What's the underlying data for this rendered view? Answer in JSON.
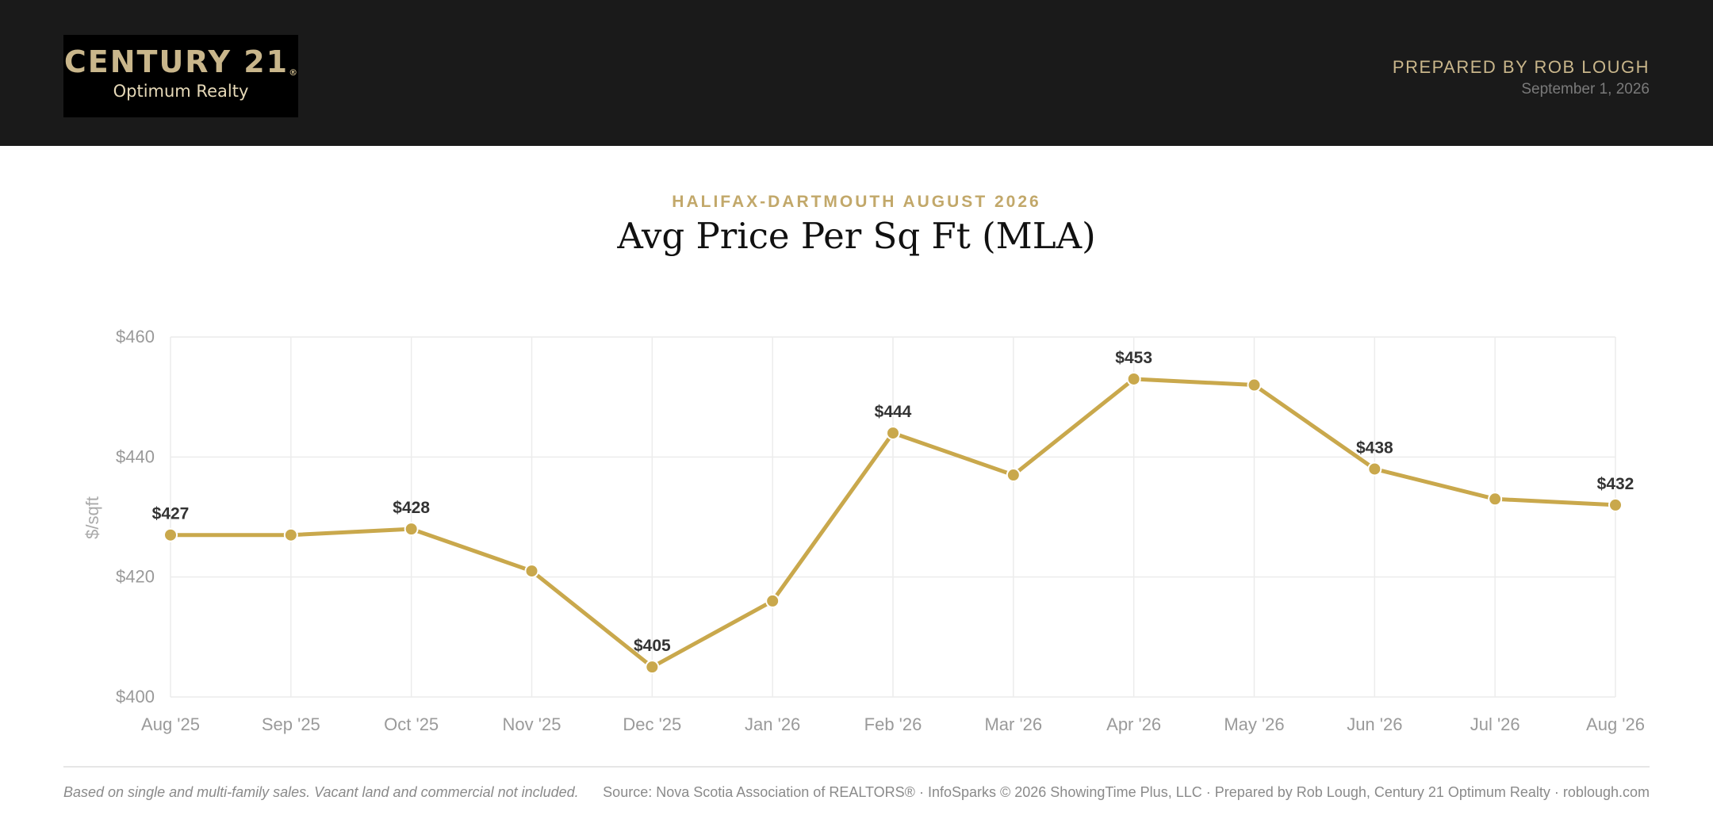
{
  "header": {
    "logo_brand": "CENTURY 21",
    "logo_registered": "®",
    "logo_sub": "Optimum Realty",
    "prepared_by": "PREPARED BY ROB LOUGH",
    "date": "September 1, 2026"
  },
  "eyebrow": "HALIFAX-DARTMOUTH AUGUST 2026",
  "title": "Avg Price Per Sq Ft (MLA)",
  "chart_data": {
    "type": "line",
    "title": "Avg Price Per Sq Ft (MLA)",
    "xlabel": "",
    "ylabel": "$/sqft",
    "categories": [
      "Aug '25",
      "Sep '25",
      "Oct '25",
      "Nov '25",
      "Dec '25",
      "Jan '26",
      "Feb '26",
      "Mar '26",
      "Apr '26",
      "May '26",
      "Jun '26",
      "Jul '26",
      "Aug '26"
    ],
    "series": [
      {
        "values": [
          427,
          427,
          428,
          421,
          405,
          416,
          444,
          437,
          453,
          452,
          438,
          433,
          432
        ],
        "color": "#c9a84c"
      }
    ],
    "labeled_points": [
      0,
      2,
      4,
      6,
      8,
      10,
      12
    ],
    "label_prefix": "$",
    "ylim": [
      400,
      460
    ],
    "yticks": [
      400,
      420,
      440,
      460
    ],
    "ytick_labels": [
      "$400",
      "$420",
      "$440",
      "$460"
    ],
    "grid": true,
    "legend": "none"
  },
  "footer": {
    "note": "Based on single and multi-family sales. Vacant land and commercial not included.",
    "source": "Source: Nova Scotia Association of REALTORS® · InfoSparks © 2026 ShowingTime Plus, LLC · Prepared by Rob Lough, Century 21 Optimum Realty · roblough.com"
  }
}
